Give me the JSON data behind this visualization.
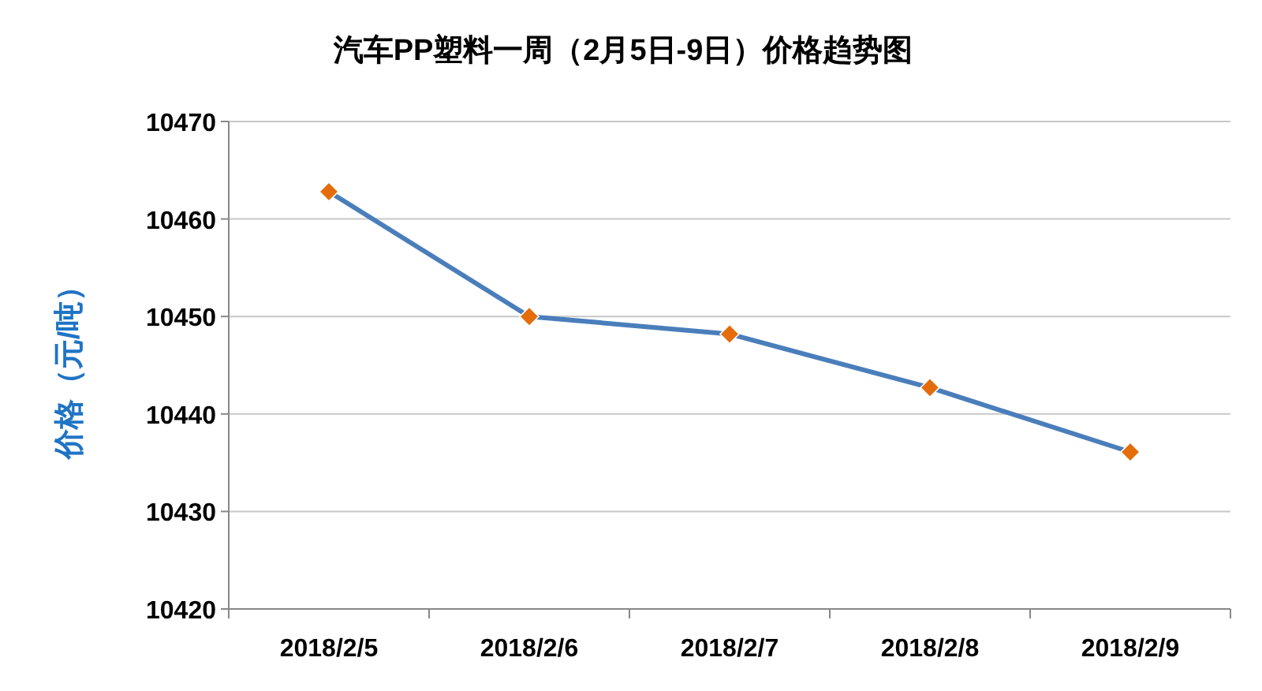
{
  "chart_data": {
    "type": "line",
    "title": "汽车PP塑料一周（2月5日-9日）价格趋势图",
    "ylabel": "价格（元/吨）",
    "categories": [
      "2018/2/5",
      "2018/2/6",
      "2018/2/7",
      "2018/2/8",
      "2018/2/9"
    ],
    "series": [
      {
        "color": "#4a7ebb",
        "colors": [
          "#e46c0a",
          "#e46c0a",
          "#e46c0a",
          "#e46c0a",
          "#e46c0a"
        ],
        "values": [
          10462.8,
          10450,
          10448.2,
          10442.7,
          10436.1
        ]
      }
    ],
    "ylim": [
      10420,
      10470
    ],
    "yticks": [
      10420,
      10430,
      10440,
      10450,
      10460,
      10470
    ],
    "grid": "y",
    "marker": "diamond",
    "line_style": "solid"
  }
}
